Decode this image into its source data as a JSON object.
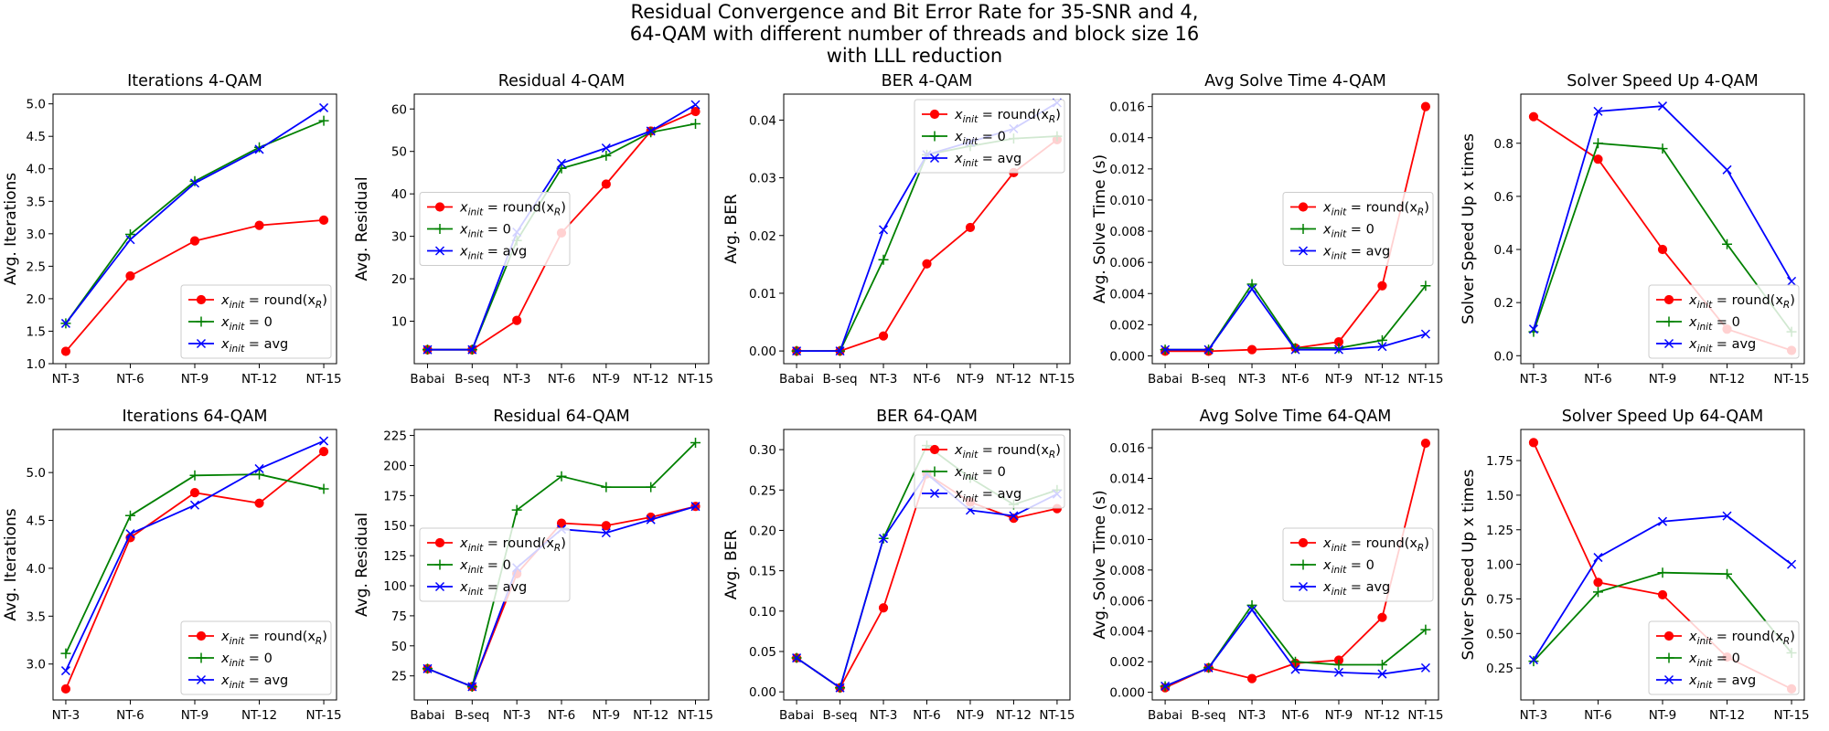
{
  "figure": {
    "suptitle_lines": [
      "Residual Convergence and Bit Error Rate for 35-SNR and 4,",
      "64-QAM with different number of threads and block size 16",
      "with LLL reduction"
    ]
  },
  "series_style": [
    {
      "color": "#ff0000",
      "marker": "circle"
    },
    {
      "color": "#008000",
      "marker": "plus"
    },
    {
      "color": "#0000ff",
      "marker": "x"
    }
  ],
  "legend_labels": [
    {
      "base": "x",
      "sub": "init",
      "rhs": " = round(x",
      "rhs_sub": "R",
      "rhs_end": ")"
    },
    {
      "base": "x",
      "sub": "init",
      "rhs": " = 0",
      "rhs_sub": "",
      "rhs_end": ""
    },
    {
      "base": "x",
      "sub": "init",
      "rhs": " = avg",
      "rhs_sub": "",
      "rhs_end": ""
    }
  ],
  "chart_data": [
    {
      "type": "line",
      "title": "Iterations 4-QAM",
      "xlabel": "",
      "ylabel": "Avg. Iterations",
      "categories": [
        "NT-3",
        "NT-6",
        "NT-9",
        "NT-12",
        "NT-15"
      ],
      "ylim": [
        1.0,
        5.15
      ],
      "yticks": [
        1.0,
        1.5,
        2.0,
        2.5,
        3.0,
        3.5,
        4.0,
        4.5,
        5.0
      ],
      "ytick_labels": [
        "1.0",
        "1.5",
        "2.0",
        "2.5",
        "3.0",
        "3.5",
        "4.0",
        "4.5",
        "5.0"
      ],
      "legend_loc": "lower right",
      "series": [
        {
          "values": [
            1.19,
            2.35,
            2.89,
            3.13,
            3.21
          ]
        },
        {
          "values": [
            1.62,
            2.99,
            3.81,
            4.33,
            4.74
          ]
        },
        {
          "values": [
            1.62,
            2.91,
            3.78,
            4.3,
            4.94
          ]
        }
      ]
    },
    {
      "type": "line",
      "title": "Residual 4-QAM",
      "xlabel": "",
      "ylabel": "Avg. Residual",
      "categories": [
        "Babai",
        "B-seq",
        "NT-3",
        "NT-6",
        "NT-9",
        "NT-12",
        "NT-15"
      ],
      "ylim": [
        0,
        63.5
      ],
      "yticks": [
        10,
        20,
        30,
        40,
        50,
        60
      ],
      "ytick_labels": [
        "10",
        "20",
        "30",
        "40",
        "50",
        "60"
      ],
      "legend_loc": "center left",
      "series": [
        {
          "values": [
            3.3,
            3.3,
            10.2,
            30.8,
            42.3,
            54.8,
            59.4
          ]
        },
        {
          "values": [
            3.3,
            3.3,
            29.0,
            46.0,
            49.0,
            54.5,
            56.5
          ]
        },
        {
          "values": [
            3.3,
            3.3,
            31.0,
            47.2,
            50.8,
            54.8,
            61.0
          ]
        }
      ]
    },
    {
      "type": "line",
      "title": "BER 4-QAM",
      "xlabel": "",
      "ylabel": "Avg. BER",
      "categories": [
        "Babai",
        "B-seq",
        "NT-3",
        "NT-6",
        "NT-9",
        "NT-12",
        "NT-15"
      ],
      "ylim": [
        -0.0022,
        0.0445
      ],
      "yticks": [
        0.0,
        0.01,
        0.02,
        0.03,
        0.04
      ],
      "ytick_labels": [
        "0.00",
        "0.01",
        "0.02",
        "0.03",
        "0.04"
      ],
      "legend_loc": "upper right",
      "series": [
        {
          "values": [
            0.0,
            0.0,
            0.0026,
            0.0151,
            0.0214,
            0.0309,
            0.0366
          ]
        },
        {
          "values": [
            0.0,
            0.0,
            0.0158,
            0.034,
            0.0355,
            0.0368,
            0.0372
          ]
        },
        {
          "values": [
            0.0,
            0.0,
            0.021,
            0.034,
            0.0362,
            0.0385,
            0.043
          ]
        }
      ]
    },
    {
      "type": "line",
      "title": "Avg Solve Time 4-QAM",
      "xlabel": "",
      "ylabel": "Avg. Solve Time (s)",
      "categories": [
        "Babai",
        "B-seq",
        "NT-3",
        "NT-6",
        "NT-9",
        "NT-12",
        "NT-15"
      ],
      "ylim": [
        -0.0005,
        0.0168
      ],
      "yticks": [
        0.0,
        0.002,
        0.004,
        0.006,
        0.008,
        0.01,
        0.012,
        0.014,
        0.016
      ],
      "ytick_labels": [
        "0.000",
        "0.002",
        "0.004",
        "0.006",
        "0.008",
        "0.010",
        "0.012",
        "0.014",
        "0.016"
      ],
      "legend_loc": "center right",
      "series": [
        {
          "values": [
            0.0003,
            0.0003,
            0.0004,
            0.0005,
            0.0009,
            0.0045,
            0.016
          ]
        },
        {
          "values": [
            0.0004,
            0.0004,
            0.0046,
            0.0005,
            0.0005,
            0.001,
            0.0045
          ]
        },
        {
          "values": [
            0.0004,
            0.0004,
            0.0043,
            0.0004,
            0.0004,
            0.0006,
            0.0014
          ]
        }
      ]
    },
    {
      "type": "line",
      "title": "Solver Speed Up 4-QAM",
      "xlabel": "",
      "ylabel": "Solver Speed Up x times",
      "categories": [
        "NT-3",
        "NT-6",
        "NT-9",
        "NT-12",
        "NT-15"
      ],
      "ylim": [
        -0.03,
        0.985
      ],
      "yticks": [
        0.0,
        0.2,
        0.4,
        0.6,
        0.8
      ],
      "ytick_labels": [
        "0.0",
        "0.2",
        "0.4",
        "0.6",
        "0.8"
      ],
      "legend_loc": "lower right",
      "series": [
        {
          "values": [
            0.9,
            0.74,
            0.4,
            0.1,
            0.02
          ]
        },
        {
          "values": [
            0.09,
            0.8,
            0.78,
            0.42,
            0.09
          ]
        },
        {
          "values": [
            0.1,
            0.92,
            0.94,
            0.7,
            0.28
          ]
        }
      ]
    },
    {
      "type": "line",
      "title": "Iterations 64-QAM",
      "xlabel": "",
      "ylabel": "Avg. Iterations",
      "categories": [
        "NT-3",
        "NT-6",
        "NT-9",
        "NT-12",
        "NT-15"
      ],
      "ylim": [
        2.625,
        5.45
      ],
      "yticks": [
        3.0,
        3.5,
        4.0,
        4.5,
        5.0
      ],
      "ytick_labels": [
        "3.0",
        "3.5",
        "4.0",
        "4.5",
        "5.0"
      ],
      "legend_loc": "lower right",
      "series": [
        {
          "values": [
            2.74,
            4.32,
            4.79,
            4.68,
            5.22
          ]
        },
        {
          "values": [
            3.11,
            4.55,
            4.97,
            4.98,
            4.83
          ]
        },
        {
          "values": [
            2.93,
            4.36,
            4.66,
            5.04,
            5.33
          ]
        }
      ]
    },
    {
      "type": "line",
      "title": "Residual 64-QAM",
      "xlabel": "",
      "ylabel": "Avg. Residual",
      "categories": [
        "Babai",
        "B-seq",
        "NT-3",
        "NT-6",
        "NT-9",
        "NT-12",
        "NT-15"
      ],
      "ylim": [
        5,
        230
      ],
      "yticks": [
        25,
        50,
        75,
        100,
        125,
        150,
        175,
        200,
        225
      ],
      "ytick_labels": [
        "25",
        "50",
        "75",
        "100",
        "125",
        "150",
        "175",
        "200",
        "225"
      ],
      "legend_loc": "center left",
      "series": [
        {
          "values": [
            31,
            16,
            110,
            152,
            150,
            157,
            166
          ]
        },
        {
          "values": [
            31,
            16,
            163,
            191,
            182,
            182,
            219
          ]
        },
        {
          "values": [
            31,
            16,
            115,
            147,
            144,
            155,
            166
          ]
        }
      ]
    },
    {
      "type": "line",
      "title": "BER 64-QAM",
      "xlabel": "",
      "ylabel": "Avg. BER",
      "categories": [
        "Babai",
        "B-seq",
        "NT-3",
        "NT-6",
        "NT-9",
        "NT-12",
        "NT-15"
      ],
      "ylim": [
        -0.01,
        0.325
      ],
      "yticks": [
        0.0,
        0.05,
        0.1,
        0.15,
        0.2,
        0.25,
        0.3
      ],
      "ytick_labels": [
        "0.00",
        "0.05",
        "0.10",
        "0.15",
        "0.20",
        "0.25",
        "0.30"
      ],
      "legend_loc": "upper right",
      "series": [
        {
          "values": [
            0.042,
            0.005,
            0.104,
            0.27,
            0.235,
            0.215,
            0.227
          ]
        },
        {
          "values": [
            0.042,
            0.005,
            0.19,
            0.305,
            0.265,
            0.232,
            0.25
          ]
        },
        {
          "values": [
            0.042,
            0.005,
            0.19,
            0.27,
            0.225,
            0.218,
            0.245
          ]
        }
      ]
    },
    {
      "type": "line",
      "title": "Avg Solve Time 64-QAM",
      "xlabel": "",
      "ylabel": "Avg. Solve Time (s)",
      "categories": [
        "Babai",
        "B-seq",
        "NT-3",
        "NT-6",
        "NT-9",
        "NT-12",
        "NT-15"
      ],
      "ylim": [
        -0.0005,
        0.0172
      ],
      "yticks": [
        0.0,
        0.002,
        0.004,
        0.006,
        0.008,
        0.01,
        0.012,
        0.014,
        0.016
      ],
      "ytick_labels": [
        "0.000",
        "0.002",
        "0.004",
        "0.006",
        "0.008",
        "0.010",
        "0.012",
        "0.014",
        "0.016"
      ],
      "legend_loc": "center right",
      "series": [
        {
          "values": [
            0.0003,
            0.0016,
            0.0009,
            0.0019,
            0.0021,
            0.0049,
            0.0163
          ]
        },
        {
          "values": [
            0.0004,
            0.0016,
            0.0057,
            0.002,
            0.0018,
            0.0018,
            0.0041
          ]
        },
        {
          "values": [
            0.0004,
            0.0016,
            0.0054,
            0.0015,
            0.0013,
            0.0012,
            0.0016
          ]
        }
      ]
    },
    {
      "type": "line",
      "title": "Solver Speed Up 64-QAM",
      "xlabel": "",
      "ylabel": "Solver Speed Up x times",
      "categories": [
        "NT-3",
        "NT-6",
        "NT-9",
        "NT-12",
        "NT-15"
      ],
      "ylim": [
        0.02,
        1.975
      ],
      "yticks": [
        0.25,
        0.5,
        0.75,
        1.0,
        1.25,
        1.5,
        1.75
      ],
      "ytick_labels": [
        "0.25",
        "0.50",
        "0.75",
        "1.00",
        "1.25",
        "1.50",
        "1.75"
      ],
      "legend_loc": "lower right",
      "series": [
        {
          "values": [
            1.88,
            0.87,
            0.78,
            0.33,
            0.1
          ]
        },
        {
          "values": [
            0.3,
            0.8,
            0.94,
            0.93,
            0.36
          ]
        },
        {
          "values": [
            0.31,
            1.05,
            1.31,
            1.35,
            1.0
          ]
        }
      ]
    }
  ]
}
